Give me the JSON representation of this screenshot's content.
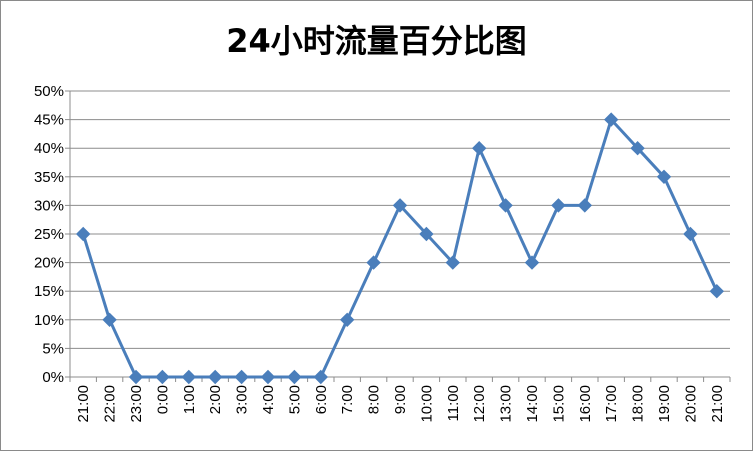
{
  "chart_data": {
    "type": "line",
    "title": "24小时流量百分比图",
    "xlabel": "",
    "ylabel": "",
    "categories": [
      "21:00",
      "22:00",
      "23:00",
      "0:00",
      "1:00",
      "2:00",
      "3:00",
      "4:00",
      "5:00",
      "6:00",
      "7:00",
      "8:00",
      "9:00",
      "10:00",
      "11:00",
      "12:00",
      "13:00",
      "14:00",
      "15:00",
      "16:00",
      "17:00",
      "18:00",
      "19:00",
      "20:00",
      "21:00"
    ],
    "series": [
      {
        "values": [
          25,
          10,
          0,
          0,
          0,
          0,
          0,
          0,
          0,
          0,
          10,
          20,
          30,
          25,
          20,
          40,
          30,
          20,
          30,
          30,
          45,
          40,
          35,
          25,
          15
        ]
      }
    ],
    "ylim": [
      0,
      50
    ],
    "yticks": [
      "0%",
      "5%",
      "10%",
      "15%",
      "20%",
      "25%",
      "30%",
      "35%",
      "40%",
      "45%",
      "50%"
    ],
    "grid": true,
    "legend": "none",
    "line_color": "#4a7ebb",
    "marker": "diamond"
  }
}
